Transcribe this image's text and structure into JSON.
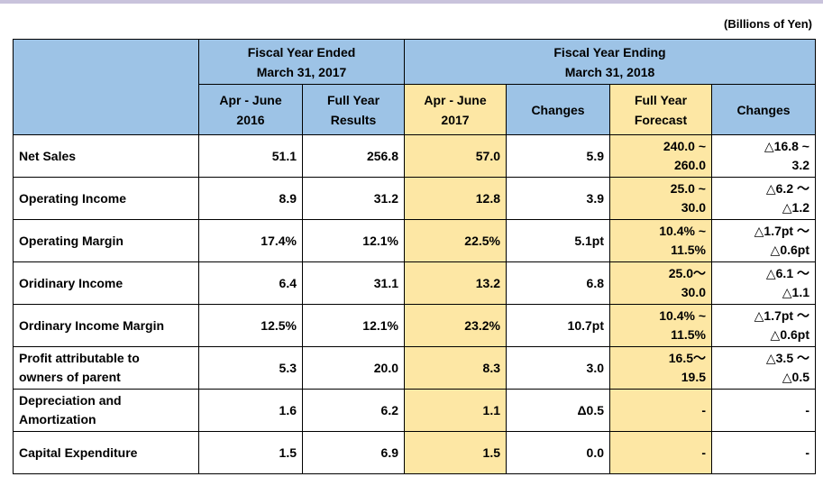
{
  "unit_note": "(Billions of Yen)",
  "header": {
    "group_fy2017": "Fiscal Year Ended\nMarch 31, 2017",
    "group_fy2018": "Fiscal Year Ending\nMarch 31, 2018",
    "cols": {
      "apr_june_2016": "Apr - June\n2016",
      "full_year_results": "Full Year\nResults",
      "apr_june_2017": "Apr - June\n2017",
      "changes_q": "Changes",
      "full_year_forecast": "Full Year\nForecast",
      "changes_fy": "Changes"
    }
  },
  "rows": [
    {
      "label": "Net Sales",
      "q2016": "51.1",
      "fy2017": "256.8",
      "q2017": "57.0",
      "chg_q": "5.9",
      "fc_a": "240.0 ~",
      "fc_b": "260.0",
      "chg_a": "△16.8 ~",
      "chg_b": "3.2"
    },
    {
      "label": "Operating Income",
      "q2016": "8.9",
      "fy2017": "31.2",
      "q2017": "12.8",
      "chg_q": "3.9",
      "fc_a": "25.0 ~",
      "fc_b": "30.0",
      "chg_a": "△6.2 ～",
      "chg_b": "△1.2"
    },
    {
      "label": "Operating Margin",
      "q2016": "17.4%",
      "fy2017": "12.1%",
      "q2017": "22.5%",
      "chg_q": "5.1pt",
      "fc_a": "10.4% ~",
      "fc_b": "11.5%",
      "chg_a": "△1.7pt ～",
      "chg_b": "△0.6pt"
    },
    {
      "label": "Oridinary Income",
      "q2016": "6.4",
      "fy2017": "31.1",
      "q2017": "13.2",
      "chg_q": "6.8",
      "fc_a": "25.0～",
      "fc_b": "30.0",
      "chg_a": "△6.1 ～",
      "chg_b": "△1.1"
    },
    {
      "label": "Ordinary Income Margin",
      "q2016": "12.5%",
      "fy2017": "12.1%",
      "q2017": "23.2%",
      "chg_q": "10.7pt",
      "fc_a": "10.4% ~",
      "fc_b": "11.5%",
      "chg_a": "△1.7pt ～",
      "chg_b": "△0.6pt"
    },
    {
      "label": "Profit attributable to\nowners of parent",
      "q2016": "5.3",
      "fy2017": "20.0",
      "q2017": "8.3",
      "chg_q": "3.0",
      "fc_a": "16.5～",
      "fc_b": "19.5",
      "chg_a": "△3.5 ～",
      "chg_b": "△0.5"
    },
    {
      "label": "Depreciation and\nAmortization",
      "q2016": "1.6",
      "fy2017": "6.2",
      "q2017": "1.1",
      "chg_q": "Δ0.5",
      "fc_a": "",
      "fc_b": "-",
      "chg_a": "",
      "chg_b": "-"
    },
    {
      "label": "Capital Expenditure",
      "q2016": "1.5",
      "fy2017": "6.9",
      "q2017": "1.5",
      "chg_q": "0.0",
      "fc_a": "",
      "fc_b": "-",
      "chg_a": "",
      "chg_b": "-"
    }
  ]
}
